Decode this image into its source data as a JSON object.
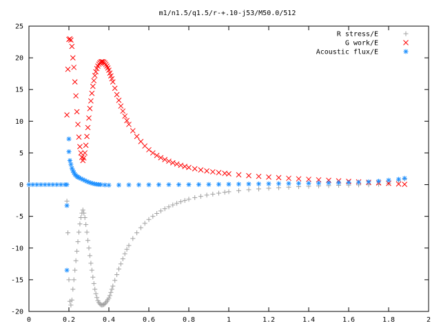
{
  "chart_data": {
    "type": "scatter",
    "title": "m1/n1.5/q1.5/r-+.10-j53/M50.0/512",
    "xlabel": "",
    "ylabel": "",
    "xlim": [
      0,
      2
    ],
    "ylim": [
      -20,
      25
    ],
    "x_ticks": [
      "0",
      "0.2",
      "0.4",
      "0.6",
      "0.8",
      "1",
      "1.2",
      "1.4",
      "1.6",
      "1.8",
      "2"
    ],
    "y_ticks": [
      "25",
      "20",
      "15",
      "10",
      "5",
      "0",
      "-5",
      "-10",
      "-15",
      "-20"
    ],
    "grid": false,
    "legend_position": "top-right",
    "series": [
      {
        "name": "R stress/E",
        "marker": "plus",
        "color": "#a0a0a0",
        "x": [
          0.19,
          0.195,
          0.2,
          0.205,
          0.21,
          0.215,
          0.22,
          0.225,
          0.23,
          0.235,
          0.24,
          0.245,
          0.25,
          0.255,
          0.26,
          0.265,
          0.27,
          0.275,
          0.28,
          0.285,
          0.29,
          0.295,
          0.3,
          0.305,
          0.31,
          0.315,
          0.32,
          0.325,
          0.33,
          0.335,
          0.34,
          0.345,
          0.35,
          0.355,
          0.36,
          0.365,
          0.37,
          0.375,
          0.38,
          0.385,
          0.39,
          0.395,
          0.4,
          0.405,
          0.41,
          0.415,
          0.42,
          0.43,
          0.44,
          0.45,
          0.46,
          0.47,
          0.48,
          0.49,
          0.5,
          0.52,
          0.54,
          0.56,
          0.58,
          0.6,
          0.62,
          0.64,
          0.66,
          0.68,
          0.7,
          0.72,
          0.74,
          0.76,
          0.78,
          0.8,
          0.83,
          0.86,
          0.89,
          0.92,
          0.95,
          0.98,
          1.0,
          1.05,
          1.1,
          1.15,
          1.2,
          1.25,
          1.3,
          1.35,
          1.4,
          1.45,
          1.5,
          1.55,
          1.6,
          1.65,
          1.7,
          1.75,
          1.8,
          1.85,
          1.88
        ],
        "y": [
          -2.6,
          -7.6,
          -15.0,
          -18.4,
          -19.0,
          -18.2,
          -16.5,
          -15.0,
          -13.5,
          -12.0,
          -10.5,
          -9.0,
          -7.5,
          -6.2,
          -5.2,
          -4.5,
          -4.0,
          -4.5,
          -5.2,
          -6.3,
          -7.5,
          -8.8,
          -10.0,
          -11.2,
          -12.4,
          -13.5,
          -14.6,
          -15.6,
          -16.5,
          -17.2,
          -17.8,
          -18.3,
          -18.6,
          -18.8,
          -18.95,
          -19.0,
          -18.97,
          -18.9,
          -18.8,
          -18.6,
          -18.4,
          -18.15,
          -17.9,
          -17.5,
          -17.0,
          -16.5,
          -16.0,
          -15.1,
          -14.2,
          -13.3,
          -12.5,
          -11.7,
          -10.9,
          -10.2,
          -9.6,
          -8.5,
          -7.6,
          -6.8,
          -6.1,
          -5.5,
          -5.0,
          -4.55,
          -4.15,
          -3.8,
          -3.5,
          -3.2,
          -2.95,
          -2.7,
          -2.5,
          -2.3,
          -2.05,
          -1.85,
          -1.65,
          -1.5,
          -1.35,
          -1.2,
          -1.12,
          -0.95,
          -0.8,
          -0.68,
          -0.57,
          -0.48,
          -0.4,
          -0.32,
          -0.26,
          -0.2,
          -0.15,
          -0.1,
          -0.07,
          -0.04,
          -0.02,
          0.05,
          0.2,
          0.6,
          0.9
        ]
      },
      {
        "name": "G work/E",
        "marker": "cross",
        "color": "#ff0000",
        "x": [
          0.19,
          0.195,
          0.2,
          0.205,
          0.21,
          0.215,
          0.22,
          0.225,
          0.23,
          0.235,
          0.24,
          0.245,
          0.25,
          0.255,
          0.26,
          0.265,
          0.27,
          0.275,
          0.28,
          0.285,
          0.29,
          0.295,
          0.3,
          0.305,
          0.31,
          0.315,
          0.32,
          0.325,
          0.33,
          0.335,
          0.34,
          0.345,
          0.35,
          0.355,
          0.36,
          0.365,
          0.37,
          0.375,
          0.38,
          0.385,
          0.39,
          0.395,
          0.4,
          0.405,
          0.41,
          0.415,
          0.42,
          0.43,
          0.44,
          0.45,
          0.46,
          0.47,
          0.48,
          0.49,
          0.5,
          0.52,
          0.54,
          0.56,
          0.58,
          0.6,
          0.62,
          0.64,
          0.66,
          0.68,
          0.7,
          0.72,
          0.74,
          0.76,
          0.78,
          0.8,
          0.83,
          0.86,
          0.89,
          0.92,
          0.95,
          0.98,
          1.0,
          1.05,
          1.1,
          1.15,
          1.2,
          1.25,
          1.3,
          1.35,
          1.4,
          1.45,
          1.5,
          1.55,
          1.6,
          1.65,
          1.7,
          1.75,
          1.8,
          1.85,
          1.88
        ],
        "y": [
          11.0,
          18.2,
          22.9,
          23.0,
          22.8,
          21.8,
          20.0,
          18.5,
          16.2,
          14.0,
          11.5,
          9.5,
          7.5,
          6.0,
          5.0,
          4.3,
          3.8,
          4.2,
          5.0,
          6.2,
          7.6,
          9.0,
          10.5,
          12.0,
          13.2,
          14.4,
          15.5,
          16.4,
          17.2,
          17.8,
          18.3,
          18.7,
          19.0,
          19.2,
          19.35,
          19.4,
          19.38,
          19.3,
          19.15,
          18.95,
          18.7,
          18.4,
          18.05,
          17.6,
          17.15,
          16.7,
          16.2,
          15.2,
          14.2,
          13.3,
          12.4,
          11.6,
          10.8,
          10.1,
          9.5,
          8.5,
          7.6,
          6.8,
          6.1,
          5.5,
          5.0,
          4.6,
          4.25,
          3.95,
          3.7,
          3.45,
          3.25,
          3.05,
          2.87,
          2.7,
          2.5,
          2.32,
          2.16,
          2.02,
          1.9,
          1.78,
          1.7,
          1.55,
          1.42,
          1.3,
          1.2,
          1.1,
          1.0,
          0.92,
          0.84,
          0.76,
          0.68,
          0.6,
          0.52,
          0.44,
          0.36,
          0.28,
          0.2,
          0.1,
          0.05
        ]
      },
      {
        "name": "Acoustic flux/E",
        "marker": "star",
        "color": "#1e90ff",
        "x": [
          0.0,
          0.02,
          0.04,
          0.06,
          0.08,
          0.1,
          0.12,
          0.14,
          0.16,
          0.18,
          0.19,
          0.19,
          0.19,
          0.2,
          0.2,
          0.205,
          0.21,
          0.215,
          0.22,
          0.225,
          0.23,
          0.235,
          0.24,
          0.245,
          0.25,
          0.26,
          0.27,
          0.28,
          0.29,
          0.3,
          0.31,
          0.32,
          0.33,
          0.34,
          0.35,
          0.36,
          0.38,
          0.4,
          0.45,
          0.5,
          0.55,
          0.6,
          0.65,
          0.7,
          0.75,
          0.8,
          0.85,
          0.9,
          0.95,
          1.0,
          1.05,
          1.1,
          1.15,
          1.2,
          1.25,
          1.3,
          1.35,
          1.4,
          1.45,
          1.5,
          1.55,
          1.6,
          1.65,
          1.7,
          1.75,
          1.8,
          1.85,
          1.88
        ],
        "y": [
          0.0,
          0.0,
          0.0,
          0.0,
          0.0,
          0.0,
          0.0,
          0.0,
          0.0,
          0.0,
          -13.5,
          -3.3,
          0.0,
          7.2,
          5.2,
          3.8,
          3.2,
          2.6,
          2.2,
          1.9,
          1.6,
          1.45,
          1.3,
          1.2,
          1.1,
          0.95,
          0.8,
          0.65,
          0.5,
          0.38,
          0.27,
          0.18,
          0.1,
          0.05,
          0.02,
          0.0,
          -0.05,
          -0.08,
          -0.06,
          -0.04,
          -0.03,
          -0.02,
          -0.01,
          0.0,
          0.0,
          0.01,
          0.02,
          0.03,
          0.05,
          0.06,
          0.08,
          0.1,
          0.12,
          0.14,
          0.16,
          0.18,
          0.2,
          0.22,
          0.25,
          0.28,
          0.3,
          0.34,
          0.38,
          0.45,
          0.55,
          0.7,
          0.85,
          1.0
        ]
      }
    ]
  }
}
